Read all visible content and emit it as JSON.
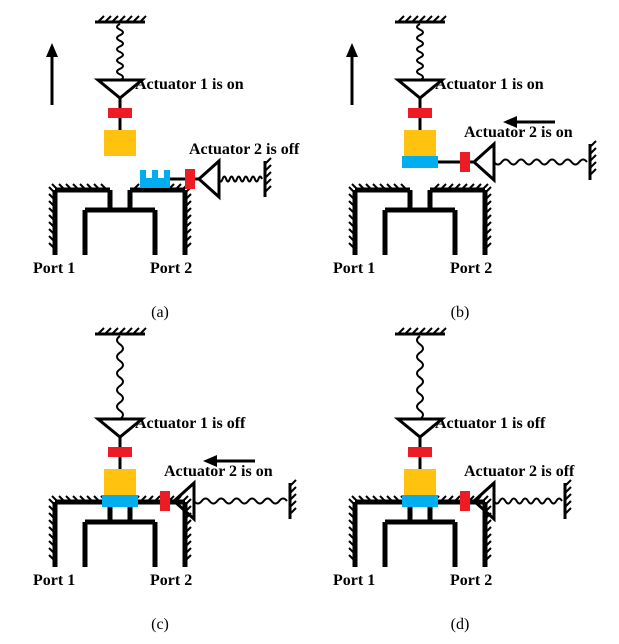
{
  "colors": {
    "stroke": "#000000",
    "red": "#ed1c24",
    "yellow": "#ffc20e",
    "blue": "#00aeef",
    "bg": "#ffffff"
  },
  "panels": [
    {
      "id": "a",
      "caption": "(a)",
      "act1_label": "Actuator 1 is on",
      "act2_label": "Actuator 2 is off",
      "port1_label": "Port 1",
      "port2_label": "Port 2",
      "act1_on": true,
      "act2_on": false,
      "show_up_arrow": true,
      "show_left_arrow": false,
      "plunger_raised": true,
      "latch_open": true,
      "socket_style": "open"
    },
    {
      "id": "b",
      "caption": "(b)",
      "act1_label": "Actuator 1 is on",
      "act2_label": "Actuator 2 is on",
      "port1_label": "Port 1",
      "port2_label": "Port 2",
      "act1_on": true,
      "act2_on": true,
      "show_up_arrow": true,
      "show_left_arrow": true,
      "plunger_raised": true,
      "latch_open": false,
      "socket_style": "seated"
    },
    {
      "id": "c",
      "caption": "(c)",
      "act1_label": "Actuator 1 is off",
      "act2_label": "Actuator 2 is on",
      "port1_label": "Port 1",
      "port2_label": "Port 2",
      "act1_on": false,
      "act2_on": true,
      "show_up_arrow": false,
      "show_left_arrow": true,
      "plunger_raised": false,
      "latch_open": false,
      "socket_style": "seated"
    },
    {
      "id": "d",
      "caption": "(d)",
      "act1_label": "Actuator 1 is off",
      "act2_label": "Actuator 2 is off",
      "port1_label": "Port 1",
      "port2_label": "Port 2",
      "act1_on": false,
      "act2_on": false,
      "show_up_arrow": false,
      "show_left_arrow": false,
      "plunger_raised": false,
      "latch_open": false,
      "socket_style": "seated"
    }
  ]
}
